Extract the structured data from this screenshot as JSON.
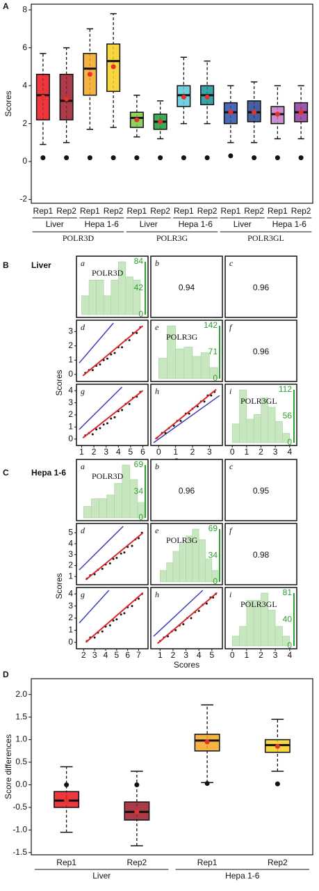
{
  "chart_data": [
    {
      "type": "box",
      "panel": "A",
      "ylabel": "Scores",
      "ylim": [
        -2.2,
        8.3
      ],
      "yticks": [
        -2,
        0,
        2,
        4,
        6,
        8
      ],
      "mean_color": "#e8312a",
      "background_mean_color": "#111111",
      "genes": [
        {
          "name": "POLR3D",
          "cells": [
            {
              "name": "Liver",
              "reps": [
                {
                  "name": "Rep1",
                  "color": "#e8141c",
                  "min": 0.9,
                  "q1": 2.2,
                  "median": 3.5,
                  "q3": 4.6,
                  "max": 5.7,
                  "mean": 3.4,
                  "background_mean": 0.2
                },
                {
                  "name": "Rep2",
                  "color": "#9b1a2a",
                  "min": 1.0,
                  "q1": 2.2,
                  "median": 3.2,
                  "q3": 4.6,
                  "max": 6.0,
                  "mean": 3.3,
                  "background_mean": 0.2
                }
              ]
            },
            {
              "name": "Hepa 1-6",
              "reps": [
                {
                  "name": "Rep1",
                  "color": "#f5a623",
                  "min": 1.7,
                  "q1": 3.5,
                  "median": 4.9,
                  "q3": 5.7,
                  "max": 7.0,
                  "mean": 4.6,
                  "background_mean": 0.2
                },
                {
                  "name": "Rep2",
                  "color": "#f5d020",
                  "min": 1.8,
                  "q1": 3.7,
                  "median": 5.3,
                  "q3": 6.2,
                  "max": 7.8,
                  "mean": 5.0,
                  "background_mean": 0.2
                }
              ]
            }
          ]
        },
        {
          "name": "POLR3G",
          "cells": [
            {
              "name": "Liver",
              "reps": [
                {
                  "name": "Rep1",
                  "color": "#7ac943",
                  "min": 1.3,
                  "q1": 1.8,
                  "median": 2.3,
                  "q3": 2.6,
                  "max": 3.5,
                  "mean": 2.2,
                  "background_mean": 0.2
                },
                {
                  "name": "Rep2",
                  "color": "#1a9b3a",
                  "min": 1.2,
                  "q1": 1.7,
                  "median": 2.1,
                  "q3": 2.5,
                  "max": 3.2,
                  "mean": 2.1,
                  "background_mean": 0.2
                }
              ]
            },
            {
              "name": "Hepa 1-6",
              "reps": [
                {
                  "name": "Rep1",
                  "color": "#5cc8d8",
                  "min": 2.0,
                  "q1": 2.9,
                  "median": 3.5,
                  "q3": 4.0,
                  "max": 5.5,
                  "mean": 3.4,
                  "background_mean": 0.2
                },
                {
                  "name": "Rep2",
                  "color": "#16959a",
                  "min": 2.0,
                  "q1": 3.0,
                  "median": 3.5,
                  "q3": 4.0,
                  "max": 5.3,
                  "mean": 3.4,
                  "background_mean": 0.2
                }
              ]
            }
          ]
        },
        {
          "name": "POLR3GL",
          "cells": [
            {
              "name": "Liver",
              "reps": [
                {
                  "name": "Rep1",
                  "color": "#2b4fa8",
                  "min": 1.0,
                  "q1": 2.0,
                  "median": 2.6,
                  "q3": 3.1,
                  "max": 4.0,
                  "mean": 2.6,
                  "background_mean": 0.3
                },
                {
                  "name": "Rep2",
                  "color": "#27438e",
                  "min": 1.0,
                  "q1": 2.1,
                  "median": 2.6,
                  "q3": 3.2,
                  "max": 4.2,
                  "mean": 2.6,
                  "background_mean": 0.2
                }
              ]
            },
            {
              "name": "Hepa 1-6",
              "reps": [
                {
                  "name": "Rep1",
                  "color": "#c478c4",
                  "min": 1.2,
                  "q1": 2.0,
                  "median": 2.5,
                  "q3": 2.9,
                  "max": 4.0,
                  "mean": 2.5,
                  "background_mean": 0.2
                },
                {
                  "name": "Rep2",
                  "color": "#8e3c9e",
                  "min": 1.2,
                  "q1": 2.1,
                  "median": 2.6,
                  "q3": 3.1,
                  "max": 4.0,
                  "mean": 2.6,
                  "background_mean": 0.2
                }
              ]
            }
          ]
        }
      ]
    },
    {
      "type": "pairs",
      "panel": "B",
      "title": "Liver",
      "xlabel": "Scores",
      "ylabel": "Scores",
      "identity_line": true,
      "identity_color": "#3b3bb5",
      "fit_color": "#d9262a",
      "point_color": "#111111",
      "hist_color": "#c8e6c0",
      "count_axis_color": "#2ca02c",
      "variables": [
        {
          "name": "POLR3D",
          "lim": [
            0.8,
            6.2
          ],
          "ticks": [
            1,
            2,
            3,
            4,
            5,
            6
          ],
          "hist": {
            "bins": [
              1,
              1.6,
              2.2,
              2.8,
              3.4,
              4,
              4.6,
              5.2,
              5.8
            ],
            "counts": [
              30,
              55,
              55,
              30,
              55,
              84,
              60,
              55
            ],
            "count_lim": [
              0,
              84
            ],
            "count_ticks": [
              0,
              42,
              84
            ]
          }
        },
        {
          "name": "POLR3G",
          "lim": [
            -0.3,
            3.6
          ],
          "ticks": [
            0,
            1,
            2,
            3
          ],
          "hist": {
            "bins": [
              0,
              0.5,
              1,
              1.5,
              2,
              2.5,
              3,
              3.5
            ],
            "counts": [
              55,
              142,
              80,
              85,
              60,
              70,
              30
            ],
            "count_lim": [
              0,
              142
            ],
            "count_ticks": [
              0,
              71,
              142
            ]
          }
        },
        {
          "name": "POLR3GL",
          "lim": [
            -0.3,
            4.3
          ],
          "ticks": [
            0,
            1,
            2,
            3,
            4
          ],
          "hist": {
            "bins": [
              0,
              0.5,
              1,
              1.5,
              2,
              2.5,
              3,
              3.5,
              4
            ],
            "counts": [
              40,
              112,
              50,
              60,
              95,
              75,
              45,
              20
            ],
            "count_lim": [
              0,
              112
            ],
            "count_ticks": [
              0,
              56,
              112
            ]
          }
        }
      ],
      "cells": [
        {
          "letter": "a"
        },
        {
          "letter": "b",
          "r": 0.94
        },
        {
          "letter": "c",
          "r": 0.96
        },
        {
          "letter": "d",
          "x": [
            1.3,
            1.6,
            1.9,
            2.2,
            2.5,
            2.8,
            3.1,
            3.4,
            3.7,
            4.0,
            4.3,
            4.6,
            4.9,
            5.2,
            5.5,
            5.8
          ],
          "y": [
            0.1,
            0.3,
            0.3,
            0.6,
            0.7,
            1.0,
            1.1,
            1.4,
            1.5,
            1.9,
            1.9,
            2.4,
            2.4,
            2.9,
            2.9,
            3.3
          ],
          "fit": {
            "x": [
              1.1,
              6.0
            ],
            "y": [
              -0.1,
              3.4
            ]
          }
        },
        {
          "letter": "e"
        },
        {
          "letter": "f",
          "r": 0.96
        },
        {
          "letter": "g",
          "x": [
            1.3,
            1.6,
            1.9,
            2.2,
            2.5,
            2.8,
            3.1,
            3.4,
            3.7,
            4.0,
            4.3,
            4.6,
            4.9,
            5.2,
            5.5,
            5.8
          ],
          "y": [
            0.3,
            0.5,
            0.4,
            0.8,
            0.9,
            1.2,
            1.3,
            1.7,
            1.8,
            2.3,
            2.4,
            2.9,
            2.9,
            3.4,
            3.5,
            3.9
          ],
          "fit": {
            "x": [
              1.1,
              6.0
            ],
            "y": [
              0.1,
              4.0
            ]
          }
        },
        {
          "letter": "h",
          "x": [
            -0.1,
            0.2,
            0.4,
            0.6,
            0.9,
            1.1,
            1.3,
            1.6,
            1.8,
            2.0,
            2.3,
            2.5,
            2.7,
            2.9,
            3.1,
            3.3
          ],
          "y": [
            0.1,
            0.5,
            0.5,
            0.9,
            1.1,
            1.5,
            1.5,
            2.1,
            2.1,
            2.5,
            2.7,
            3.1,
            3.1,
            3.6,
            3.6,
            3.9
          ],
          "fit": {
            "x": [
              -0.2,
              3.4
            ],
            "y": [
              0.0,
              4.1
            ]
          }
        },
        {
          "letter": "i"
        }
      ]
    },
    {
      "type": "pairs",
      "panel": "C",
      "title": "Hepa 1-6",
      "xlabel": "Scores",
      "ylabel": "Scores",
      "identity_line": true,
      "identity_color": "#3b3bb5",
      "fit_color": "#d9262a",
      "point_color": "#111111",
      "hist_color": "#c8e6c0",
      "count_axis_color": "#2ca02c",
      "variables": [
        {
          "name": "POLR3D",
          "lim": [
            1.6,
            7.6
          ],
          "ticks": [
            2,
            3,
            4,
            5,
            6,
            7
          ],
          "hist": {
            "bins": [
              2,
              2.7,
              3.4,
              4.1,
              4.8,
              5.5,
              6.2,
              6.9,
              7.6
            ],
            "counts": [
              15,
              25,
              25,
              30,
              45,
              69,
              50,
              20
            ],
            "count_lim": [
              0,
              69
            ],
            "count_ticks": [
              0,
              34,
              69
            ]
          }
        },
        {
          "name": "POLR3G",
          "lim": [
            0.5,
            5.6
          ],
          "ticks": [
            1,
            2,
            3,
            4,
            5
          ],
          "hist": {
            "bins": [
              1,
              1.5,
              2,
              2.5,
              3,
              3.5,
              4,
              4.5,
              5,
              5.5
            ],
            "counts": [
              15,
              25,
              40,
              50,
              60,
              69,
              55,
              30,
              15
            ],
            "count_lim": [
              0,
              69
            ],
            "count_ticks": [
              0,
              34,
              69
            ]
          }
        },
        {
          "name": "POLR3GL",
          "lim": [
            -0.3,
            4.3
          ],
          "ticks": [
            0,
            1,
            2,
            3,
            4
          ],
          "hist": {
            "bins": [
              0,
              0.5,
              1,
              1.5,
              2,
              2.5,
              3,
              3.5,
              4
            ],
            "counts": [
              15,
              30,
              70,
              70,
              81,
              55,
              30,
              15
            ],
            "count_lim": [
              0,
              81
            ],
            "count_ticks": [
              0,
              40,
              81
            ]
          }
        }
      ],
      "cells": [
        {
          "letter": "a"
        },
        {
          "letter": "b",
          "r": 0.96
        },
        {
          "letter": "c",
          "r": 0.95
        },
        {
          "letter": "d",
          "x": [
            2.3,
            2.6,
            3.0,
            3.3,
            3.7,
            4.0,
            4.4,
            4.7,
            5.0,
            5.4,
            5.7,
            6.0,
            6.4,
            6.7,
            7.0,
            7.3
          ],
          "y": [
            0.8,
            1.1,
            1.2,
            1.6,
            1.7,
            2.1,
            2.2,
            2.6,
            2.7,
            3.1,
            3.2,
            3.7,
            3.8,
            4.4,
            4.5,
            5.0
          ],
          "fit": {
            "x": [
              2.2,
              7.4
            ],
            "y": [
              0.7,
              5.0
            ]
          }
        },
        {
          "letter": "e"
        },
        {
          "letter": "f",
          "r": 0.98
        },
        {
          "letter": "g",
          "x": [
            2.3,
            2.6,
            3.0,
            3.3,
            3.7,
            4.0,
            4.4,
            4.7,
            5.0,
            5.4,
            5.7,
            6.0,
            6.4,
            6.7,
            7.0,
            7.3
          ],
          "y": [
            0.1,
            0.4,
            0.4,
            0.8,
            0.9,
            1.3,
            1.4,
            1.8,
            1.9,
            2.3,
            2.4,
            2.9,
            3.0,
            3.5,
            3.6,
            4.0
          ],
          "fit": {
            "x": [
              2.2,
              7.4
            ],
            "y": [
              0.0,
              4.1
            ]
          }
        },
        {
          "letter": "h",
          "x": [
            1.0,
            1.3,
            1.6,
            1.9,
            2.2,
            2.5,
            2.8,
            3.1,
            3.4,
            3.7,
            4.0,
            4.3,
            4.6,
            4.9,
            5.1,
            5.3
          ],
          "y": [
            0.1,
            0.4,
            0.5,
            0.9,
            1.0,
            1.4,
            1.5,
            2.0,
            2.0,
            2.5,
            2.6,
            3.1,
            3.2,
            3.7,
            3.7,
            4.0
          ],
          "fit": {
            "x": [
              0.8,
              5.4
            ],
            "y": [
              -0.1,
              4.1
            ]
          }
        },
        {
          "letter": "i"
        }
      ]
    },
    {
      "type": "box",
      "panel": "D",
      "ylabel": "Score differences",
      "ylim": [
        -1.55,
        2.35
      ],
      "yticks": [
        -1.5,
        {
          "value": -1,
          "label": "-1.0"
        },
        -0.5,
        {
          "value": 0,
          "label": "0.0"
        },
        0.5,
        {
          "value": 1,
          "label": "1.0"
        },
        1.5,
        {
          "value": 2,
          "label": "2.0"
        }
      ],
      "mean_color": "#e8312a",
      "background_mean_color": "#111111",
      "groups": [
        {
          "name": "Liver",
          "reps": [
            {
              "name": "Rep1",
              "color": "#e8141c",
              "min": -1.05,
              "q1": -0.5,
              "median": -0.35,
              "q3": -0.15,
              "max": 0.4,
              "mean": -0.35,
              "background_mean": 0.0
            },
            {
              "name": "Rep2",
              "color": "#9b1a2a",
              "min": -1.35,
              "q1": -0.78,
              "median": -0.6,
              "q3": -0.38,
              "max": 0.3,
              "mean": -0.6,
              "background_mean": 0.0
            }
          ]
        },
        {
          "name": "Hepa 1-6",
          "reps": [
            {
              "name": "Rep1",
              "color": "#f5a623",
              "min": 0.05,
              "q1": 0.75,
              "median": 0.98,
              "q3": 1.12,
              "max": 1.77,
              "mean": 0.95,
              "background_mean": 0.03
            },
            {
              "name": "Rep2",
              "color": "#f5d020",
              "min": 0.3,
              "q1": 0.72,
              "median": 0.88,
              "q3": 1.0,
              "max": 1.45,
              "mean": 0.85,
              "background_mean": 0.02
            }
          ]
        }
      ]
    }
  ]
}
